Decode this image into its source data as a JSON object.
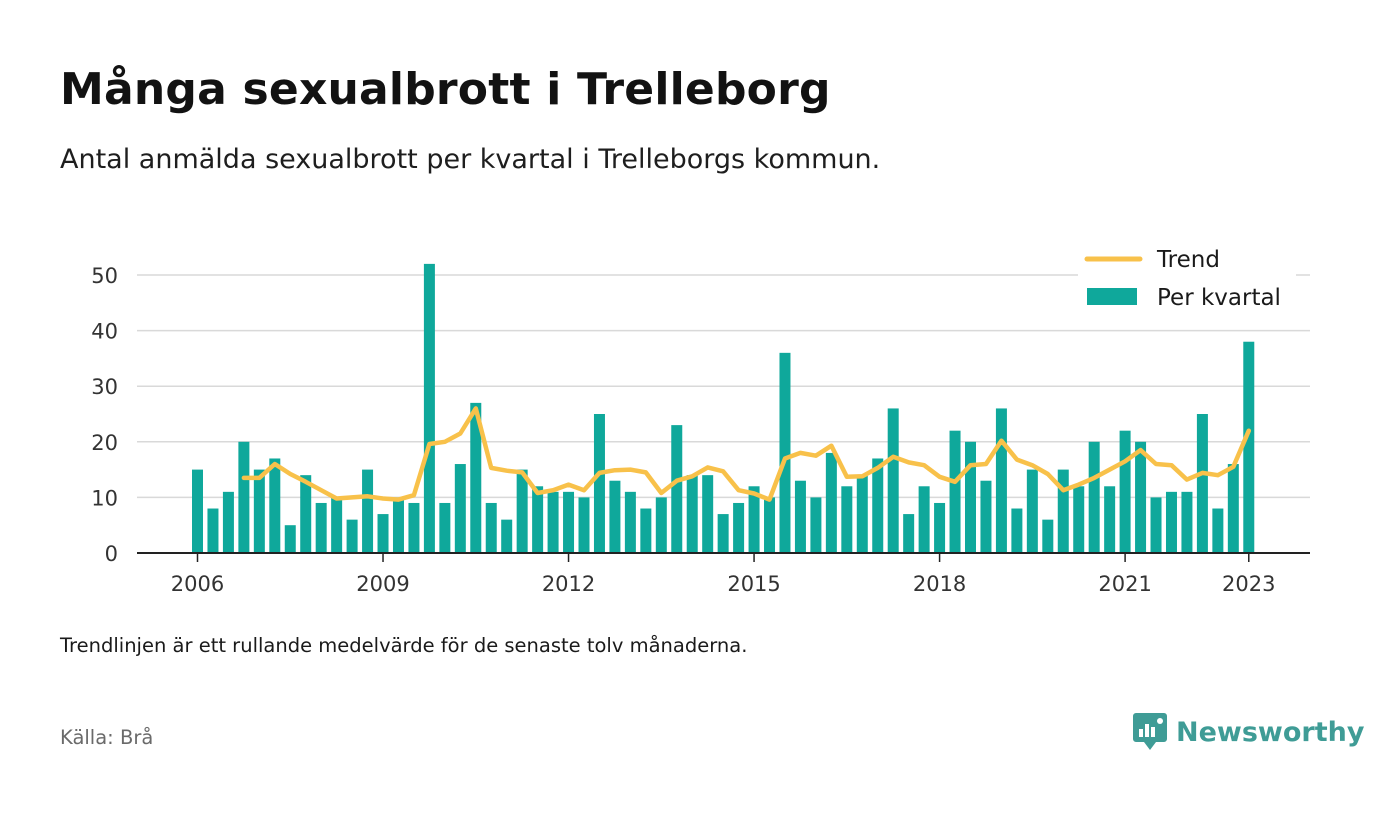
{
  "title": "Många sexualbrott i Trelleborg",
  "subtitle": "Antal anmälda sexualbrott per kvartal i Trelleborgs kommun.",
  "note": "Trendlinjen är ett rullande medelvärde för de senaste tolv månaderna.",
  "source": "Källa: Brå",
  "brand": {
    "name": "Newsworthy",
    "icon": "newsworthy-logo-icon",
    "color": "#3f9c96"
  },
  "colors": {
    "bar": "#0fa89b",
    "trend": "#f8c14a",
    "grid": "#d9d9d9",
    "axis": "#222222"
  },
  "chart_data": {
    "type": "bar",
    "title": "Många sexualbrott i Trelleborg",
    "xlabel": "",
    "ylabel": "",
    "ylim": [
      0,
      55
    ],
    "yticks": [
      0,
      10,
      20,
      30,
      40,
      50
    ],
    "xticks": [
      "2006",
      "2009",
      "2012",
      "2015",
      "2018",
      "2021",
      "2023"
    ],
    "grid": true,
    "legend_position": "top-right",
    "x": [
      "2006 Q1",
      "2006 Q2",
      "2006 Q3",
      "2006 Q4",
      "2007 Q1",
      "2007 Q2",
      "2007 Q3",
      "2007 Q4",
      "2008 Q1",
      "2008 Q2",
      "2008 Q3",
      "2008 Q4",
      "2009 Q1",
      "2009 Q2",
      "2009 Q3",
      "2009 Q4",
      "2010 Q1",
      "2010 Q2",
      "2010 Q3",
      "2010 Q4",
      "2011 Q1",
      "2011 Q2",
      "2011 Q3",
      "2011 Q4",
      "2012 Q1",
      "2012 Q2",
      "2012 Q3",
      "2012 Q4",
      "2013 Q1",
      "2013 Q2",
      "2013 Q3",
      "2013 Q4",
      "2014 Q1",
      "2014 Q2",
      "2014 Q3",
      "2014 Q4",
      "2015 Q1",
      "2015 Q2",
      "2015 Q3",
      "2015 Q4",
      "2016 Q1",
      "2016 Q2",
      "2016 Q3",
      "2016 Q4",
      "2017 Q1",
      "2017 Q2",
      "2017 Q3",
      "2017 Q4",
      "2018 Q1",
      "2018 Q2",
      "2018 Q3",
      "2018 Q4",
      "2019 Q1",
      "2019 Q2",
      "2019 Q3",
      "2019 Q4",
      "2020 Q1",
      "2020 Q2",
      "2020 Q3",
      "2020 Q4",
      "2021 Q1",
      "2021 Q2",
      "2021 Q3",
      "2021 Q4",
      "2022 Q1",
      "2022 Q2",
      "2022 Q3",
      "2022 Q4",
      "2023 Q1"
    ],
    "series": [
      {
        "name": "Per kvartal",
        "type": "bar",
        "values": [
          15,
          8,
          11,
          20,
          15,
          17,
          5,
          14,
          9,
          10,
          6,
          15,
          7,
          10,
          9,
          52,
          9,
          16,
          27,
          9,
          6,
          15,
          12,
          11,
          11,
          10,
          25,
          13,
          11,
          8,
          10,
          23,
          14,
          14,
          7,
          9,
          12,
          10,
          36,
          13,
          10,
          18,
          12,
          14,
          17,
          26,
          7,
          12,
          9,
          22,
          20,
          13,
          26,
          8,
          15,
          6,
          15,
          12,
          20,
          12,
          22,
          20,
          10,
          11,
          11,
          25,
          8,
          16,
          38
        ]
      },
      {
        "name": "Trend",
        "type": "line",
        "values": [
          null,
          null,
          null,
          13.5,
          13.5,
          16,
          14.2,
          12.8,
          11.3,
          9.8,
          10,
          10.2,
          9.8,
          9.6,
          10.4,
          19.6,
          20,
          21.5,
          26,
          15.3,
          14.8,
          14.5,
          10.8,
          11.3,
          12.3,
          11.3,
          14.4,
          14.9,
          15,
          14.5,
          10.8,
          13,
          13.8,
          15.4,
          14.7,
          11.3,
          10.7,
          9.6,
          17,
          18,
          17.5,
          19.3,
          13.7,
          13.8,
          15.3,
          17.3,
          16.3,
          15.8,
          13.7,
          12.8,
          15.8,
          16,
          20.2,
          16.8,
          15.8,
          14.2,
          11.3,
          12.3,
          13.5,
          15,
          16.5,
          18.5,
          16,
          15.8,
          13.2,
          14.4,
          14,
          15.5,
          22
        ]
      }
    ]
  }
}
